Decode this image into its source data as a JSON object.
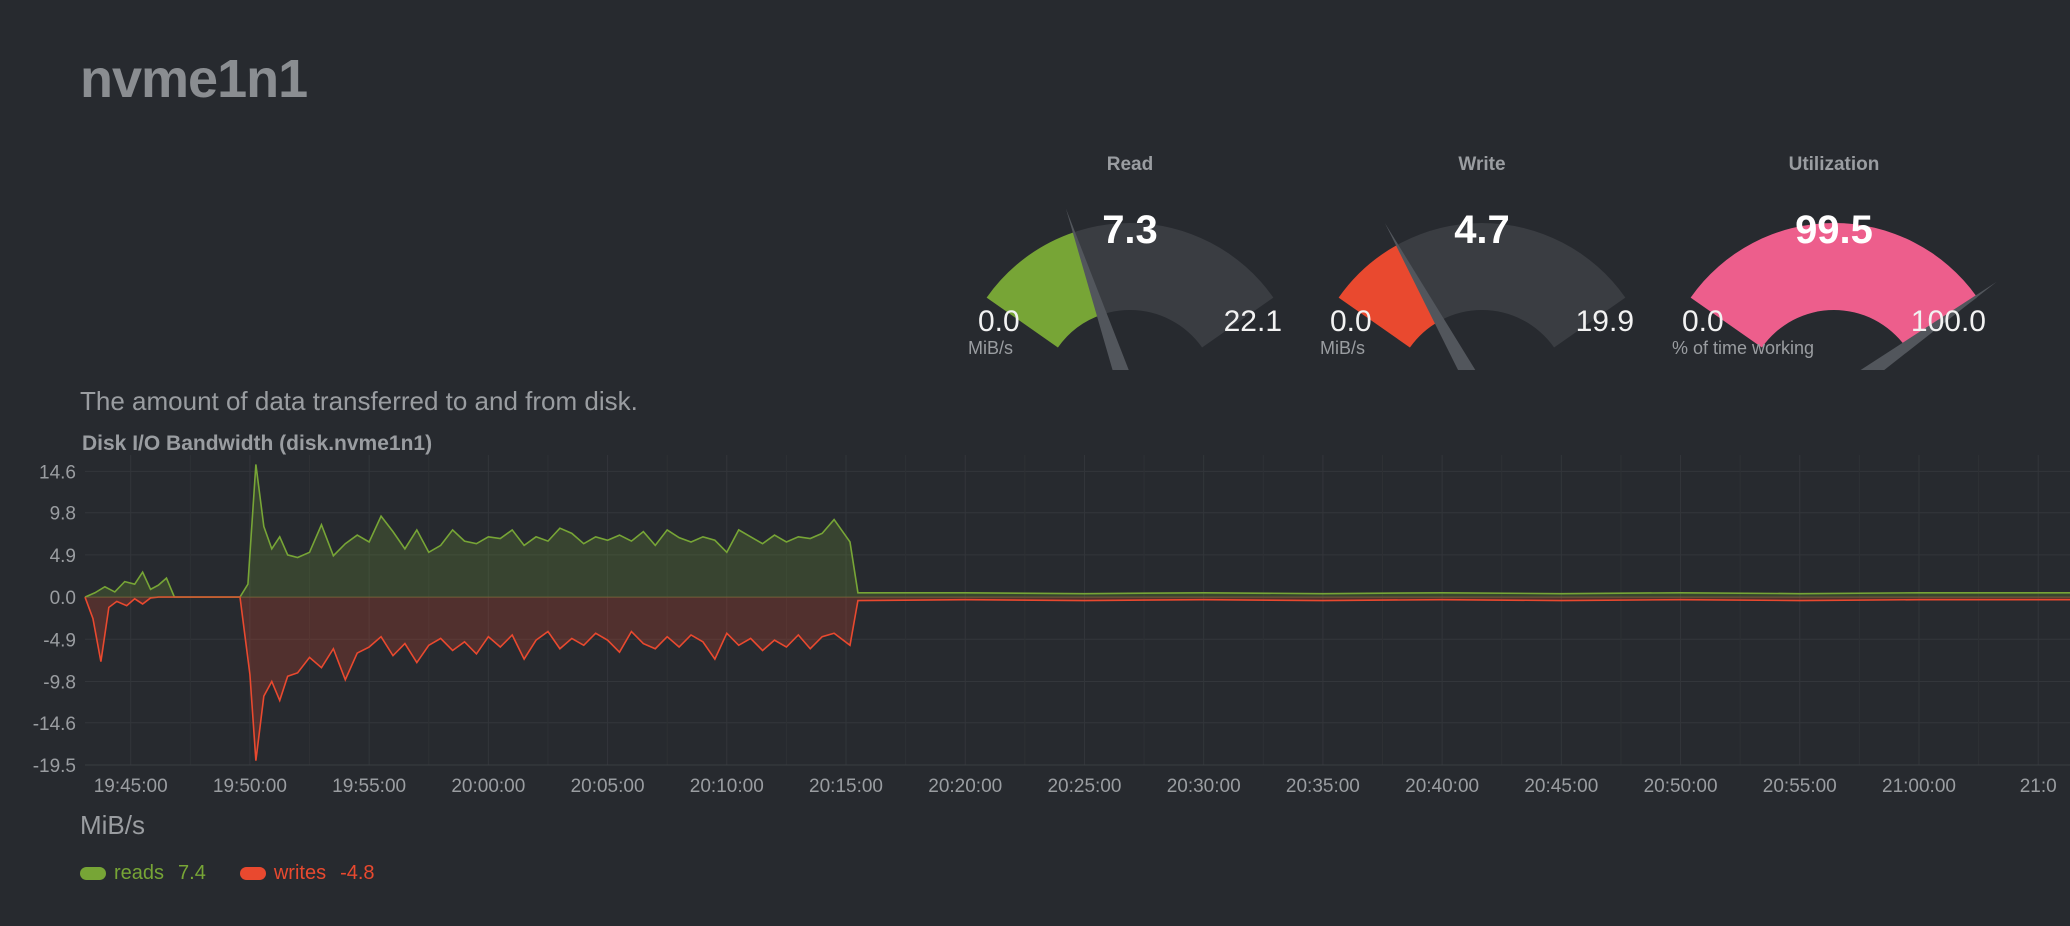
{
  "page": {
    "title": "nvme1n1",
    "description": "The amount of data transferred to and from disk."
  },
  "gauges": [
    {
      "label": "Read",
      "value": "7.3",
      "min": "0.0",
      "max": "22.1",
      "units": "MiB/s",
      "fraction": 0.33,
      "color": "#77a536"
    },
    {
      "label": "Write",
      "value": "4.7",
      "min": "0.0",
      "max": "19.9",
      "units": "MiB/s",
      "fraction": 0.236,
      "color": "#e9492f"
    },
    {
      "label": "Utilization",
      "value": "99.5",
      "min": "0.0",
      "max": "100.0",
      "units": "% of time working",
      "fraction": 0.995,
      "color": "#ed5e8c"
    }
  ],
  "chart": {
    "title": "Disk I/O Bandwidth (disk.nvme1n1)",
    "units": "MiB/s",
    "legend": [
      {
        "name": "reads",
        "value": "7.4",
        "color": "#77a536"
      },
      {
        "name": "writes",
        "value": "-4.8",
        "color": "#e9492f"
      }
    ]
  },
  "chart_data": {
    "type": "area",
    "title": "Disk I/O Bandwidth (disk.nvme1n1)",
    "ylabel": "MiB/s",
    "ylim": [
      -19.5,
      16.5
    ],
    "yticks": [
      "14.6",
      "9.8",
      "4.9",
      "0.0",
      "-4.9",
      "-9.8",
      "-14.6",
      "-19.5"
    ],
    "ytick_values": [
      14.6,
      9.8,
      4.9,
      0.0,
      -4.9,
      -9.8,
      -14.6,
      -19.5
    ],
    "xticks": [
      "19:45:00",
      "19:50:00",
      "19:55:00",
      "20:00:00",
      "20:05:00",
      "20:10:00",
      "20:15:00",
      "20:20:00",
      "20:25:00",
      "20:30:00",
      "20:35:00",
      "20:40:00",
      "20:45:00",
      "20:50:00",
      "20:55:00",
      "21:00:00",
      "21:0"
    ],
    "x_start": "19:43:05",
    "x_end": "21:06:20",
    "grid": true,
    "series": [
      {
        "name": "reads",
        "color": "#77a536",
        "points": [
          [
            "19:43:05",
            0.0
          ],
          [
            "19:43:30",
            0.5
          ],
          [
            "19:43:55",
            1.2
          ],
          [
            "19:44:20",
            0.6
          ],
          [
            "19:44:45",
            1.8
          ],
          [
            "19:45:10",
            1.5
          ],
          [
            "19:45:30",
            2.9
          ],
          [
            "19:45:50",
            0.9
          ],
          [
            "19:46:10",
            1.4
          ],
          [
            "19:46:30",
            2.2
          ],
          [
            "19:46:50",
            0.0
          ],
          [
            "19:49:35",
            0.0
          ],
          [
            "19:49:55",
            1.5
          ],
          [
            "19:50:15",
            15.4
          ],
          [
            "19:50:35",
            8.2
          ],
          [
            "19:50:55",
            5.6
          ],
          [
            "19:51:15",
            7.0
          ],
          [
            "19:51:35",
            4.9
          ],
          [
            "19:52:00",
            4.6
          ],
          [
            "19:52:30",
            5.2
          ],
          [
            "19:53:00",
            8.4
          ],
          [
            "19:53:30",
            4.8
          ],
          [
            "19:54:00",
            6.2
          ],
          [
            "19:54:30",
            7.2
          ],
          [
            "19:55:00",
            6.4
          ],
          [
            "19:55:30",
            9.4
          ],
          [
            "19:56:00",
            7.6
          ],
          [
            "19:56:30",
            5.6
          ],
          [
            "19:57:00",
            7.8
          ],
          [
            "19:57:30",
            5.2
          ],
          [
            "19:58:00",
            6.0
          ],
          [
            "19:58:30",
            7.8
          ],
          [
            "19:59:00",
            6.5
          ],
          [
            "19:59:30",
            6.2
          ],
          [
            "20:00:00",
            7.0
          ],
          [
            "20:00:30",
            6.8
          ],
          [
            "20:01:00",
            7.8
          ],
          [
            "20:01:30",
            6.0
          ],
          [
            "20:02:00",
            7.0
          ],
          [
            "20:02:30",
            6.5
          ],
          [
            "20:03:00",
            8.0
          ],
          [
            "20:03:30",
            7.4
          ],
          [
            "20:04:00",
            6.2
          ],
          [
            "20:04:30",
            7.0
          ],
          [
            "20:05:00",
            6.6
          ],
          [
            "20:05:30",
            7.2
          ],
          [
            "20:06:00",
            6.5
          ],
          [
            "20:06:30",
            7.6
          ],
          [
            "20:07:00",
            6.0
          ],
          [
            "20:07:30",
            7.8
          ],
          [
            "20:08:00",
            6.9
          ],
          [
            "20:08:30",
            6.4
          ],
          [
            "20:09:00",
            7.0
          ],
          [
            "20:09:30",
            6.6
          ],
          [
            "20:10:00",
            5.2
          ],
          [
            "20:10:30",
            7.8
          ],
          [
            "20:11:00",
            7.0
          ],
          [
            "20:11:30",
            6.2
          ],
          [
            "20:12:00",
            7.2
          ],
          [
            "20:12:30",
            6.4
          ],
          [
            "20:13:00",
            7.0
          ],
          [
            "20:13:30",
            6.8
          ],
          [
            "20:14:00",
            7.4
          ],
          [
            "20:14:30",
            9.0
          ],
          [
            "20:15:10",
            6.4
          ],
          [
            "20:15:30",
            0.5
          ],
          [
            "20:20:00",
            0.5
          ],
          [
            "20:25:00",
            0.4
          ],
          [
            "20:30:00",
            0.5
          ],
          [
            "20:35:00",
            0.4
          ],
          [
            "20:40:00",
            0.5
          ],
          [
            "20:45:00",
            0.4
          ],
          [
            "20:50:00",
            0.5
          ],
          [
            "20:55:00",
            0.4
          ],
          [
            "21:00:00",
            0.5
          ],
          [
            "21:06:20",
            0.5
          ]
        ]
      },
      {
        "name": "writes",
        "color": "#e9492f",
        "points": [
          [
            "19:43:05",
            0.0
          ],
          [
            "19:43:25",
            -2.5
          ],
          [
            "19:43:45",
            -7.5
          ],
          [
            "19:44:05",
            -1.2
          ],
          [
            "19:44:25",
            -0.5
          ],
          [
            "19:44:50",
            -1.0
          ],
          [
            "19:45:10",
            -0.2
          ],
          [
            "19:45:30",
            -0.8
          ],
          [
            "19:45:50",
            -0.1
          ],
          [
            "19:46:10",
            0.0
          ],
          [
            "19:49:35",
            0.0
          ],
          [
            "19:50:00",
            -9.0
          ],
          [
            "19:50:15",
            -19.0
          ],
          [
            "19:50:35",
            -11.5
          ],
          [
            "19:50:55",
            -9.8
          ],
          [
            "19:51:15",
            -12.0
          ],
          [
            "19:51:35",
            -9.2
          ],
          [
            "19:52:00",
            -8.8
          ],
          [
            "19:52:30",
            -7.0
          ],
          [
            "19:53:00",
            -8.2
          ],
          [
            "19:53:30",
            -6.0
          ],
          [
            "19:54:00",
            -9.6
          ],
          [
            "19:54:30",
            -6.5
          ],
          [
            "19:55:00",
            -5.8
          ],
          [
            "19:55:30",
            -4.6
          ],
          [
            "19:56:00",
            -6.8
          ],
          [
            "19:56:30",
            -5.4
          ],
          [
            "19:57:00",
            -7.6
          ],
          [
            "19:57:30",
            -5.6
          ],
          [
            "19:58:00",
            -4.8
          ],
          [
            "19:58:30",
            -6.2
          ],
          [
            "19:59:00",
            -5.2
          ],
          [
            "19:59:30",
            -6.6
          ],
          [
            "20:00:00",
            -4.6
          ],
          [
            "20:00:30",
            -5.8
          ],
          [
            "20:01:00",
            -4.4
          ],
          [
            "20:01:30",
            -7.2
          ],
          [
            "20:02:00",
            -5.0
          ],
          [
            "20:02:30",
            -4.0
          ],
          [
            "20:03:00",
            -6.0
          ],
          [
            "20:03:30",
            -4.8
          ],
          [
            "20:04:00",
            -5.6
          ],
          [
            "20:04:30",
            -4.2
          ],
          [
            "20:05:00",
            -5.0
          ],
          [
            "20:05:30",
            -6.4
          ],
          [
            "20:06:00",
            -4.0
          ],
          [
            "20:06:30",
            -5.4
          ],
          [
            "20:07:00",
            -6.0
          ],
          [
            "20:07:30",
            -4.6
          ],
          [
            "20:08:00",
            -5.8
          ],
          [
            "20:08:30",
            -4.4
          ],
          [
            "20:09:00",
            -5.2
          ],
          [
            "20:09:30",
            -7.2
          ],
          [
            "20:10:00",
            -4.2
          ],
          [
            "20:10:30",
            -5.6
          ],
          [
            "20:11:00",
            -4.8
          ],
          [
            "20:11:30",
            -6.2
          ],
          [
            "20:12:00",
            -5.0
          ],
          [
            "20:12:30",
            -5.8
          ],
          [
            "20:13:00",
            -4.4
          ],
          [
            "20:13:30",
            -6.0
          ],
          [
            "20:14:00",
            -4.6
          ],
          [
            "20:14:30",
            -4.2
          ],
          [
            "20:15:10",
            -5.6
          ],
          [
            "20:15:30",
            -0.4
          ],
          [
            "20:20:00",
            -0.3
          ],
          [
            "20:25:00",
            -0.4
          ],
          [
            "20:30:00",
            -0.3
          ],
          [
            "20:35:00",
            -0.4
          ],
          [
            "20:40:00",
            -0.3
          ],
          [
            "20:45:00",
            -0.4
          ],
          [
            "20:50:00",
            -0.3
          ],
          [
            "20:55:00",
            -0.4
          ],
          [
            "21:00:00",
            -0.3
          ],
          [
            "21:06:20",
            -0.3
          ]
        ]
      }
    ]
  }
}
